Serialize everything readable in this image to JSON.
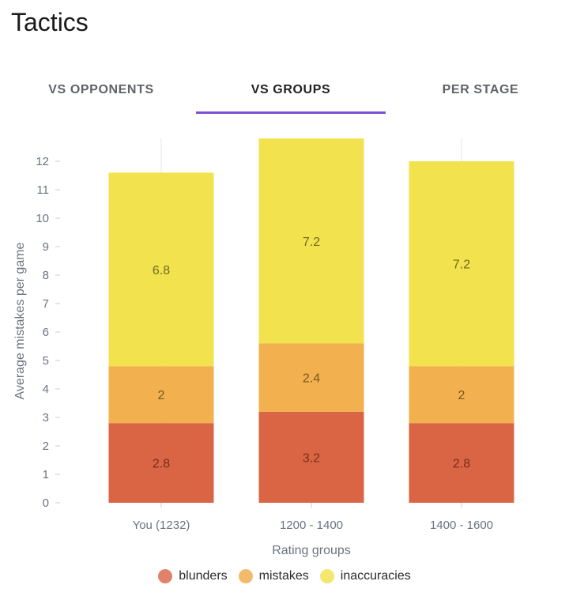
{
  "header": {
    "title": "Tactics"
  },
  "tabs": [
    {
      "label": "VS OPPONENTS",
      "active": false
    },
    {
      "label": "VS GROUPS",
      "active": true
    },
    {
      "label": "PER STAGE",
      "active": false
    }
  ],
  "chart_data": {
    "type": "bar",
    "stacked": true,
    "categories": [
      "You (1232)",
      "1200 - 1400",
      "1400 - 1600"
    ],
    "series": [
      {
        "name": "blunders",
        "values": [
          2.8,
          3.2,
          2.8
        ],
        "color": "#d96545"
      },
      {
        "name": "mistakes",
        "values": [
          2,
          2.4,
          2
        ],
        "color": "#f2b04e"
      },
      {
        "name": "inaccuracies",
        "values": [
          6.8,
          7.2,
          7.2
        ],
        "color": "#f2e24d"
      }
    ],
    "xlabel": "Rating groups",
    "ylabel": "Average mistakes per game",
    "ylim": [
      0,
      12.8
    ],
    "yticks": [
      0,
      1,
      2,
      3,
      4,
      5,
      6,
      7,
      8,
      9,
      10,
      11,
      12
    ],
    "grid": false,
    "legend": "bottom"
  },
  "colors": {
    "tab_indicator": "#7b4fd6",
    "axis_text": "#6b7380"
  }
}
